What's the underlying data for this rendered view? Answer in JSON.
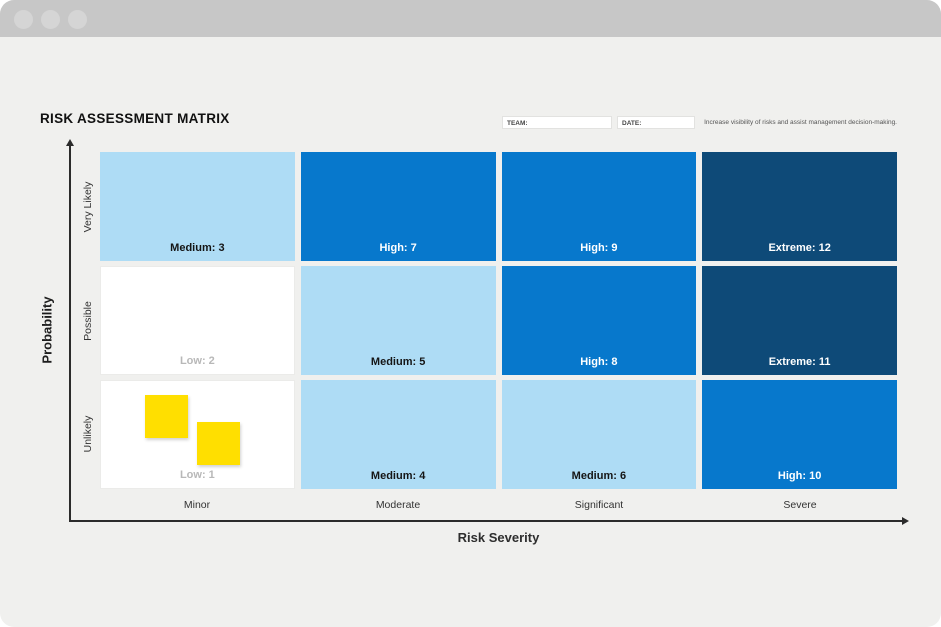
{
  "header": {
    "title": "RISK ASSESSMENT MATRIX",
    "team_label": "TEAM:",
    "date_label": "DATE:",
    "note": "Increase visibility of risks and assist management decision-making."
  },
  "axes": {
    "y_title": "Probability",
    "x_title": "Risk Severity",
    "rows": [
      "Very Likely",
      "Possible",
      "Unlikely"
    ],
    "cols": [
      "Minor",
      "Moderate",
      "Significant",
      "Severe"
    ]
  },
  "matrix": {
    "cells": [
      {
        "label": "Medium: 3",
        "level": "medium"
      },
      {
        "label": "High: 7",
        "level": "high"
      },
      {
        "label": "High: 9",
        "level": "high"
      },
      {
        "label": "Extreme: 12",
        "level": "extreme"
      },
      {
        "label": "Low: 2",
        "level": "low"
      },
      {
        "label": "Medium: 5",
        "level": "medium"
      },
      {
        "label": "High: 8",
        "level": "high"
      },
      {
        "label": "Extreme: 11",
        "level": "extreme"
      },
      {
        "label": "Low: 1",
        "level": "low"
      },
      {
        "label": "Medium: 4",
        "level": "medium"
      },
      {
        "label": "Medium: 6",
        "level": "medium"
      },
      {
        "label": "High: 10",
        "level": "high"
      }
    ],
    "sticky_note_count": 2
  },
  "colors": {
    "low_cell": "#ffffff",
    "medium_cell": "#aedcf5",
    "high_cell": "#0778cc",
    "extreme_cell": "#0e4a78",
    "sticky_note": "#ffdf00",
    "titlebar": "#c7c7c7",
    "page_background": "#f0f0ee"
  }
}
